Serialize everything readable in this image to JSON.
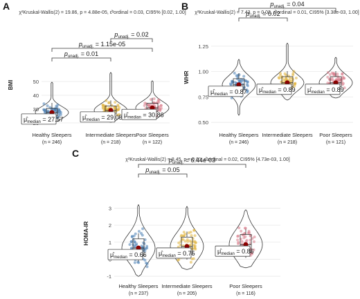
{
  "chart_data": [
    {
      "panel": "A",
      "type": "violin",
      "subtitle": "χ²Kruskal-Wallis(2) = 19.86, p = 4.88e-05, ε̂²ordinal = 0.03, CI95% [0.02, 1.00]",
      "ylabel": "BMI",
      "yticks": [
        "20",
        "30",
        "40",
        "50"
      ],
      "ylim": [
        16,
        62
      ],
      "groups": [
        {
          "name": "Healthy Sleepers",
          "n": "(n = 246)",
          "color": "#4a7fb5",
          "median": 27.57,
          "median_label": "27.57",
          "q1": 25.2,
          "q3": 30.5,
          "min": 20.5,
          "max": 49.5
        },
        {
          "name": "Intermediate Sleepers",
          "n": "(n = 218)",
          "color": "#e0b33a",
          "median": 29.05,
          "median_label": "29.05",
          "q1": 26.5,
          "q3": 32.3,
          "min": 20.5,
          "max": 56.5
        },
        {
          "name": "Poor Sleepers",
          "n": "(n = 122)",
          "color": "#d97b8a",
          "median": 30.86,
          "median_label": "30.86",
          "q1": 28.3,
          "q3": 34.2,
          "min": 22.5,
          "max": 50.5
        }
      ],
      "comparisons": [
        {
          "from": 0,
          "to": 1,
          "p": "0.01"
        },
        {
          "from": 0,
          "to": 2,
          "p": "1.15e-05"
        },
        {
          "from": 1,
          "to": 2,
          "p": "0.02"
        }
      ]
    },
    {
      "panel": "B",
      "type": "violin",
      "subtitle": "χ²Kruskal-Wallis(2) = 7.43, p = 0.02, ε̂²ordinal = 0.01, CI95% [3.38e-03, 1.00]",
      "ylabel": "WHR",
      "yticks": [
        "0.50",
        "0.75",
        "1.00",
        "1.25"
      ],
      "ylim": [
        0.44,
        1.46
      ],
      "groups": [
        {
          "name": "Healthy Sleepers",
          "n": "(n = 246)",
          "color": "#4a7fb5",
          "median": 0.87,
          "median_label": "0.87",
          "q1": 0.82,
          "q3": 0.93,
          "min": 0.57,
          "max": 1.12
        },
        {
          "name": "Intermediate Sleepers",
          "n": "(n = 218)",
          "color": "#e0b33a",
          "median": 0.89,
          "median_label": "0.89",
          "q1": 0.85,
          "q3": 0.95,
          "min": 0.72,
          "max": 1.28
        },
        {
          "name": "Poor Sleepers",
          "n": "(n = 121)",
          "color": "#d97b8a",
          "median": 0.89,
          "median_label": "0.89",
          "q1": 0.85,
          "q3": 0.95,
          "min": 0.74,
          "max": 1.14
        }
      ],
      "comparisons": [
        {
          "from": 0,
          "to": 1,
          "p": "0.02"
        },
        {
          "from": 0,
          "to": 2,
          "p": "0.04"
        }
      ]
    },
    {
      "panel": "C",
      "type": "violin",
      "subtitle": "χ²Kruskal-Wallis(2) = 8.45, p = 0.01, ε̂²ordinal = 0.02, CI95% [4.73e-03, 1.00]",
      "ylabel": "HOMA-IR",
      "yticks": [
        "-1",
        "0",
        "1",
        "2",
        "3"
      ],
      "ylim": [
        -1.2,
        4.6
      ],
      "groups": [
        {
          "name": "Healthy Sleepers",
          "n": "(n = 237)",
          "color": "#4a7fb5",
          "median": 0.66,
          "median_label": "0.66",
          "q1": 0.2,
          "q3": 1.2,
          "min": -1.0,
          "max": 3.2
        },
        {
          "name": "Intermediate Sleepers",
          "n": "(n = 205)",
          "color": "#e0b33a",
          "median": 0.75,
          "median_label": "0.75",
          "q1": 0.3,
          "q3": 1.3,
          "min": -0.6,
          "max": 3.1
        },
        {
          "name": "Poor Sleepers",
          "n": "(n = 116)",
          "color": "#d97b8a",
          "median": 0.86,
          "median_label": "0.86",
          "q1": 0.4,
          "q3": 1.45,
          "min": -0.5,
          "max": 2.9
        }
      ],
      "comparisons": [
        {
          "from": 0,
          "to": 1,
          "p": "0.05"
        },
        {
          "from": 0,
          "to": 2,
          "p": "6.44e-03"
        }
      ]
    }
  ],
  "colors": {
    "median_point": "#8b0000",
    "violin_outline": "#333333",
    "grid": "#e8e8e8"
  }
}
